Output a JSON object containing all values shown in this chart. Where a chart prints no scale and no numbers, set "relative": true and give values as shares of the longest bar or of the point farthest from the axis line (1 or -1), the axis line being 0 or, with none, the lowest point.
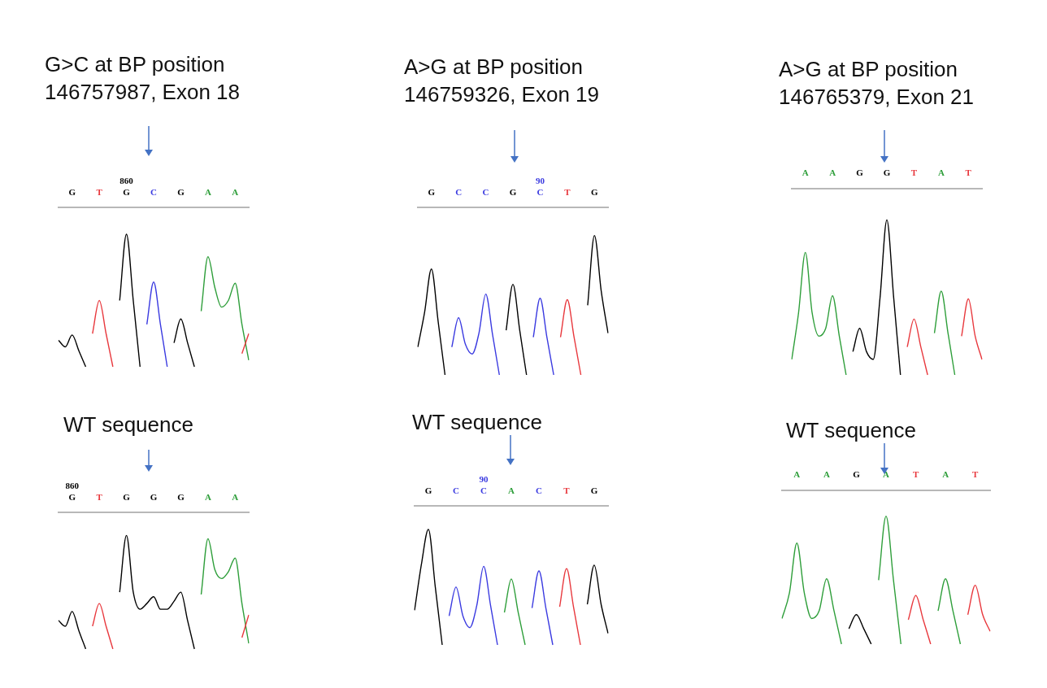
{
  "chart_data": [
    {
      "type": "line",
      "title": "G>C at BP position\n146757987, Exon 18",
      "relative": true,
      "categories": [
        null,
        null,
        "G",
        null,
        null,
        null,
        "T",
        null,
        null,
        null,
        "860\nG",
        null,
        null,
        null,
        "C",
        null,
        null,
        null,
        "G",
        null,
        null,
        null,
        "A",
        null,
        null,
        null,
        "A",
        null,
        null
      ],
      "series": [
        {
          "color": "#000000",
          "values": [
            0.2,
            0.15,
            0.24,
            0.12,
            0,
            null,
            null,
            null,
            null,
            0.5,
            1,
            0.5,
            0,
            null,
            null,
            null,
            null,
            0.18,
            0.36,
            0.18,
            0,
            null,
            null,
            null,
            null,
            null,
            null,
            null,
            null
          ]
        },
        {
          "color": "#e8383d",
          "values": [
            null,
            null,
            null,
            null,
            null,
            0.25,
            0.5,
            0.25,
            0,
            null,
            null,
            null,
            null,
            null,
            null,
            null,
            null,
            null,
            null,
            null,
            null,
            null,
            null,
            null,
            null,
            null,
            null,
            0.1,
            0.25
          ]
        },
        {
          "color": "#3a3ae0",
          "values": [
            null,
            null,
            null,
            null,
            null,
            null,
            null,
            null,
            null,
            null,
            null,
            null,
            null,
            0.32,
            0.64,
            0.32,
            0,
            null,
            null,
            null,
            null,
            null,
            null,
            null,
            null,
            null,
            null,
            null,
            null
          ]
        },
        {
          "color": "#2e9e3a",
          "values": [
            null,
            null,
            null,
            null,
            null,
            null,
            null,
            null,
            null,
            null,
            null,
            null,
            null,
            null,
            null,
            null,
            null,
            null,
            null,
            null,
            null,
            0.42,
            0.83,
            0.6,
            0.45,
            0.5,
            0.63,
            0.32,
            0.05
          ]
        }
      ]
    },
    {
      "type": "line",
      "title": "A>G at BP position\n146759326, Exon 19",
      "relative": true,
      "categories": [
        null,
        null,
        "G",
        null,
        null,
        null,
        "C",
        null,
        null,
        null,
        "C",
        null,
        null,
        null,
        "G",
        null,
        null,
        null,
        "90\nC",
        null,
        null,
        null,
        "T",
        null,
        null,
        null,
        "G",
        null,
        null
      ],
      "series": [
        {
          "color": "#000000",
          "values": [
            0.2,
            0.45,
            0.76,
            0.38,
            0,
            null,
            null,
            null,
            null,
            null,
            null,
            null,
            null,
            0.32,
            0.65,
            0.32,
            0,
            null,
            null,
            null,
            null,
            null,
            null,
            null,
            null,
            0.5,
            1,
            0.6,
            0.3
          ]
        },
        {
          "color": "#3a3ae0",
          "values": [
            null,
            null,
            null,
            null,
            null,
            0.2,
            0.41,
            0.22,
            0.15,
            0.3,
            0.58,
            0.29,
            0,
            null,
            null,
            null,
            null,
            0.27,
            0.55,
            0.27,
            0,
            null,
            null,
            null,
            null,
            null,
            null,
            null,
            null
          ]
        },
        {
          "color": "#e8383d",
          "values": [
            null,
            null,
            null,
            null,
            null,
            null,
            null,
            null,
            null,
            null,
            null,
            null,
            null,
            null,
            null,
            null,
            null,
            null,
            null,
            null,
            null,
            0.27,
            0.54,
            0.27,
            0,
            null,
            null,
            null,
            null
          ]
        }
      ]
    },
    {
      "type": "line",
      "title": "A>G at BP position\n146765379, Exon 21",
      "relative": true,
      "categories": [
        null,
        null,
        "A",
        null,
        null,
        null,
        "A",
        null,
        null,
        null,
        "G",
        null,
        null,
        null,
        "G",
        null,
        null,
        null,
        "T",
        null,
        null,
        null,
        "A",
        null,
        null,
        null,
        "T",
        null,
        null
      ],
      "series": [
        {
          "color": "#2e9e3a",
          "values": [
            0.1,
            0.4,
            0.79,
            0.4,
            0.25,
            0.3,
            0.51,
            0.25,
            0,
            null,
            null,
            null,
            null,
            null,
            null,
            null,
            null,
            null,
            null,
            null,
            null,
            0.27,
            0.54,
            0.27,
            0,
            null,
            null,
            null,
            null
          ]
        },
        {
          "color": "#000000",
          "values": [
            null,
            null,
            null,
            null,
            null,
            null,
            null,
            null,
            null,
            0.15,
            0.3,
            0.15,
            0.1,
            0.5,
            1,
            0.5,
            0,
            null,
            null,
            null,
            null,
            null,
            null,
            null,
            null,
            null,
            null,
            null,
            null
          ]
        },
        {
          "color": "#e8383d",
          "values": [
            null,
            null,
            null,
            null,
            null,
            null,
            null,
            null,
            null,
            null,
            null,
            null,
            null,
            null,
            null,
            null,
            null,
            0.18,
            0.36,
            0.18,
            0,
            null,
            null,
            null,
            null,
            0.25,
            0.49,
            0.25,
            0.1
          ]
        }
      ]
    },
    {
      "type": "line",
      "title": "WT sequence",
      "relative": true,
      "categories": [
        null,
        null,
        "860\nG",
        null,
        null,
        null,
        "T",
        null,
        null,
        null,
        "G",
        null,
        null,
        null,
        "G",
        null,
        null,
        null,
        "G",
        null,
        null,
        null,
        "A",
        null,
        null,
        null,
        "A",
        null,
        null
      ],
      "series": [
        {
          "color": "#000000",
          "values": [
            0.25,
            0.2,
            0.33,
            0.16,
            0,
            null,
            null,
            null,
            null,
            0.5,
            1,
            0.5,
            0.35,
            0.4,
            0.46,
            0.35,
            0.35,
            0.42,
            0.5,
            0.25,
            0,
            null,
            null,
            null,
            null,
            null,
            null,
            null,
            null
          ]
        },
        {
          "color": "#e8383d",
          "values": [
            null,
            null,
            null,
            null,
            null,
            0.2,
            0.4,
            0.2,
            0,
            null,
            null,
            null,
            null,
            null,
            null,
            null,
            null,
            null,
            null,
            null,
            null,
            null,
            null,
            null,
            null,
            null,
            null,
            0.1,
            0.3
          ]
        },
        {
          "color": "#2e9e3a",
          "values": [
            null,
            null,
            null,
            null,
            null,
            null,
            null,
            null,
            null,
            null,
            null,
            null,
            null,
            null,
            null,
            null,
            null,
            null,
            null,
            null,
            null,
            0.48,
            0.97,
            0.7,
            0.62,
            0.68,
            0.8,
            0.4,
            0.05
          ]
        }
      ]
    },
    {
      "type": "line",
      "title": "WT sequence",
      "relative": true,
      "categories": [
        null,
        null,
        "G",
        null,
        null,
        null,
        "C",
        null,
        null,
        null,
        "90\nC",
        null,
        null,
        null,
        "A",
        null,
        null,
        null,
        "C",
        null,
        null,
        null,
        "T",
        null,
        null,
        null,
        "G",
        null,
        null
      ],
      "series": [
        {
          "color": "#000000",
          "values": [
            0.3,
            0.7,
            1,
            0.5,
            0,
            null,
            null,
            null,
            null,
            null,
            null,
            null,
            null,
            null,
            null,
            null,
            null,
            null,
            null,
            null,
            null,
            null,
            null,
            null,
            null,
            0.35,
            0.69,
            0.35,
            0.1
          ]
        },
        {
          "color": "#3a3ae0",
          "values": [
            null,
            null,
            null,
            null,
            null,
            0.25,
            0.5,
            0.25,
            0.15,
            0.34,
            0.68,
            0.34,
            0,
            null,
            null,
            null,
            null,
            0.32,
            0.64,
            0.32,
            0,
            null,
            null,
            null,
            null,
            null,
            null,
            null,
            null
          ]
        },
        {
          "color": "#2e9e3a",
          "values": [
            null,
            null,
            null,
            null,
            null,
            null,
            null,
            null,
            null,
            null,
            null,
            null,
            null,
            0.28,
            0.57,
            0.28,
            0,
            null,
            null,
            null,
            null,
            null,
            null,
            null,
            null,
            null,
            null,
            null,
            null
          ]
        },
        {
          "color": "#e8383d",
          "values": [
            null,
            null,
            null,
            null,
            null,
            null,
            null,
            null,
            null,
            null,
            null,
            null,
            null,
            null,
            null,
            null,
            null,
            null,
            null,
            null,
            null,
            0.33,
            0.66,
            0.33,
            0,
            null,
            null,
            null,
            null
          ]
        }
      ]
    },
    {
      "type": "line",
      "title": "WT sequence",
      "relative": true,
      "categories": [
        null,
        null,
        "A",
        null,
        null,
        null,
        "A",
        null,
        null,
        null,
        "G",
        null,
        null,
        null,
        "A",
        null,
        null,
        null,
        "T",
        null,
        null,
        null,
        "A",
        null,
        null,
        null,
        "T",
        null,
        null
      ],
      "series": [
        {
          "color": "#2e9e3a",
          "values": [
            0.2,
            0.4,
            0.79,
            0.4,
            0.2,
            0.26,
            0.51,
            0.26,
            0,
            null,
            null,
            null,
            null,
            0.5,
            1,
            0.5,
            0,
            null,
            null,
            null,
            null,
            0.26,
            0.51,
            0.26,
            0,
            null,
            null,
            null,
            null
          ]
        },
        {
          "color": "#000000",
          "values": [
            null,
            null,
            null,
            null,
            null,
            null,
            null,
            null,
            null,
            0.12,
            0.23,
            0.12,
            0,
            null,
            null,
            null,
            null,
            null,
            null,
            null,
            null,
            null,
            null,
            null,
            null,
            null,
            null,
            null,
            null
          ]
        },
        {
          "color": "#e8383d",
          "values": [
            null,
            null,
            null,
            null,
            null,
            null,
            null,
            null,
            null,
            null,
            null,
            null,
            null,
            null,
            null,
            null,
            null,
            0.19,
            0.38,
            0.19,
            0,
            null,
            null,
            null,
            null,
            0.23,
            0.46,
            0.23,
            0.1
          ]
        }
      ]
    }
  ]
}
